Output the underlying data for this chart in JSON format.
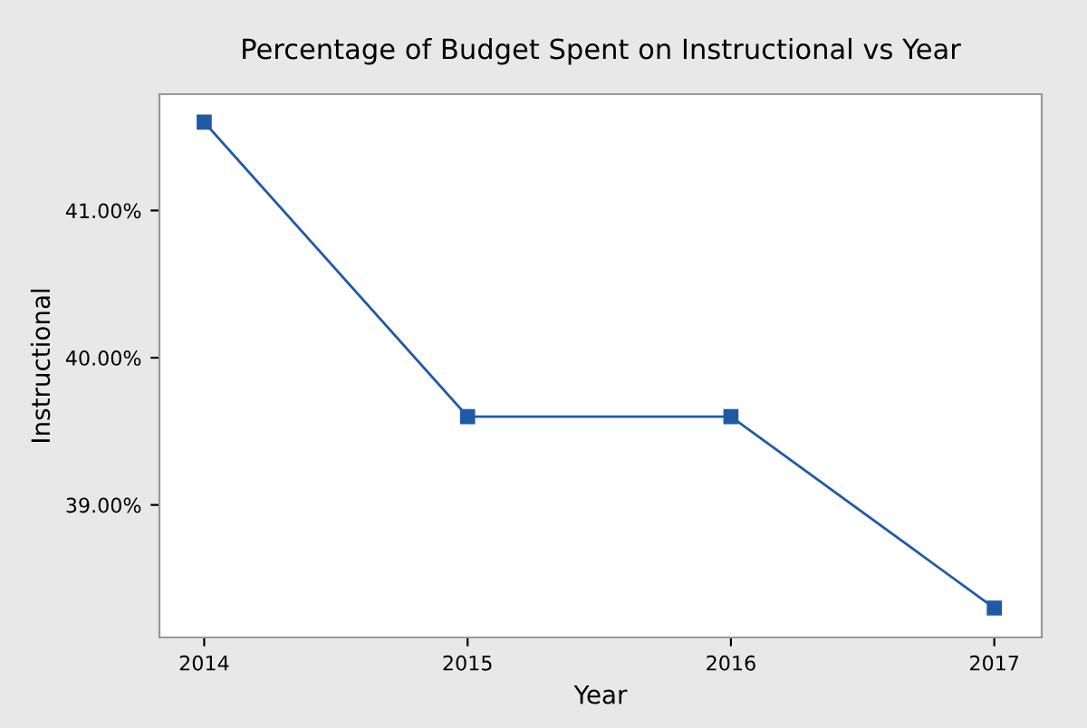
{
  "chart_data": {
    "type": "line",
    "title": "Percentage of Budget Spent on Instructional vs Year",
    "xlabel": "Year",
    "ylabel": "Instructional",
    "x": [
      2014,
      2015,
      2016,
      2017
    ],
    "series": [
      {
        "color": "#1f5aa6",
        "values": [
          41.6,
          39.6,
          39.6,
          38.3
        ]
      }
    ],
    "xlim": [
      2013.83,
      2017.18
    ],
    "xticks": [
      2014,
      2015,
      2016,
      2017
    ],
    "ylim": [
      38.1,
      41.79
    ],
    "yticks": [
      {
        "value": 39,
        "label": "39.00%"
      },
      {
        "value": 40,
        "label": "40.00%"
      },
      {
        "value": 41,
        "label": "41.00%"
      }
    ],
    "grid": false,
    "marker": "square",
    "line_style": "solid"
  }
}
